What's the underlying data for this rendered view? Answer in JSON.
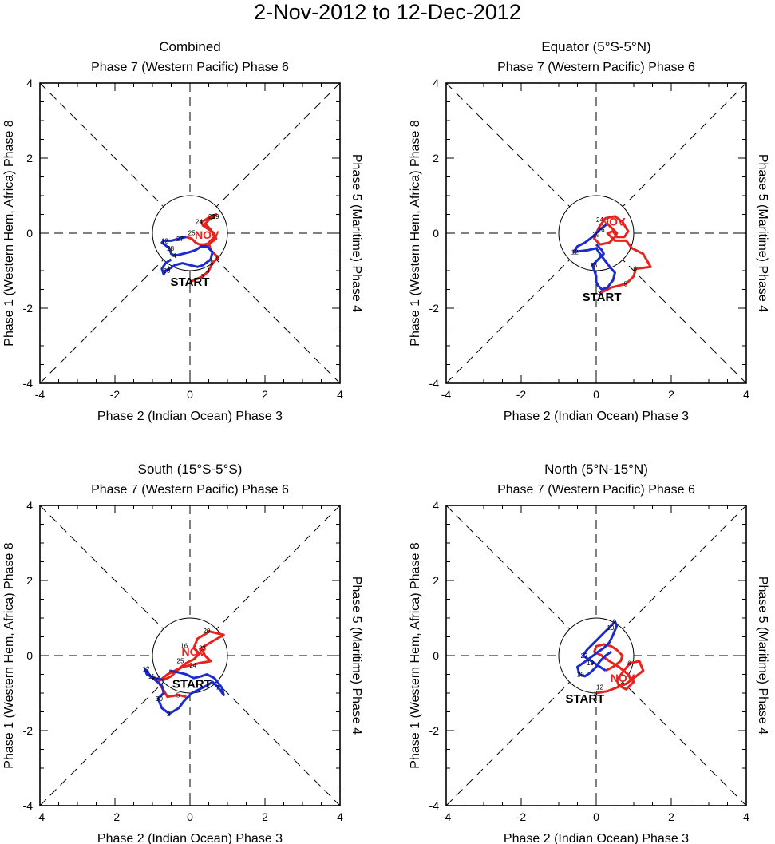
{
  "main_title": "2-Nov-2012 to 12-Dec-2012",
  "colors": {
    "november": "#e8231e",
    "december": "#1b2ccc",
    "axis": "#000000"
  },
  "labels": {
    "top_axis": "Phase 7 (Western Pacific) Phase 6",
    "bottom_axis": "Phase 2 (Indian Ocean) Phase 3",
    "left_axis": "Phase 1 (Western Hem, Africa) Phase 8",
    "right_axis": "Phase 5 (Maritime) Phase 4",
    "start": "START",
    "month_marker": "NOV"
  },
  "chart_data": [
    {
      "type": "line",
      "title": "Combined",
      "xlim": [
        -4,
        4
      ],
      "ylim": [
        -4,
        4
      ],
      "xticks": [
        "-4",
        "-2",
        "0",
        "2",
        "4"
      ],
      "yticks": [
        "-4",
        "-2",
        "0",
        "2",
        "4"
      ],
      "start": [
        0.0,
        -1.3
      ],
      "nov_label": [
        0.45,
        -0.15
      ],
      "series": [
        {
          "name": "November",
          "x": [
            0.0,
            0.35,
            0.5,
            0.6,
            0.75,
            0.55,
            0.5,
            0.65,
            0.55,
            0.4,
            0.5,
            0.65,
            0.7,
            0.55,
            0.4,
            0.3,
            0.35,
            0.5,
            0.65,
            0.7,
            0.55,
            0.4,
            0.25,
            0.15,
            0.05,
            -0.1
          ],
          "y": [
            -1.3,
            -1.15,
            -1.0,
            -0.8,
            -0.65,
            -0.45,
            -0.25,
            -0.1,
            0.1,
            0.25,
            0.35,
            0.45,
            0.5,
            0.45,
            0.35,
            0.3,
            0.2,
            0.1,
            0.0,
            -0.15,
            -0.25,
            -0.3,
            -0.3,
            -0.25,
            -0.15,
            -0.1
          ],
          "point_labels": [
            "2",
            "3",
            "4",
            "5",
            "6",
            "",
            "",
            "",
            "",
            "",
            "",
            "19",
            "",
            "20",
            "",
            "",
            "",
            "",
            "",
            "",
            "",
            "",
            "",
            "",
            "",
            ""
          ]
        },
        {
          "name": "December",
          "x": [
            -0.1,
            -0.3,
            -0.5,
            -0.7,
            -0.75,
            -0.55,
            -0.5,
            -0.4,
            -0.2,
            0.0,
            0.15,
            0.3,
            0.45,
            0.6,
            0.55,
            0.35,
            0.2,
            0.0,
            -0.2,
            -0.4,
            -0.55,
            -0.65,
            -0.7,
            -0.75,
            -0.65,
            -0.5
          ],
          "y": [
            -0.1,
            -0.15,
            -0.2,
            -0.2,
            -0.25,
            -0.4,
            -0.55,
            -0.6,
            -0.55,
            -0.5,
            -0.45,
            -0.35,
            -0.35,
            -0.5,
            -0.7,
            -0.85,
            -0.9,
            -0.85,
            -0.8,
            -0.85,
            -0.95,
            -1.0,
            -1.1,
            -0.95,
            -0.8,
            -0.7
          ],
          "point_labels": [
            "",
            "27",
            "",
            "12",
            "",
            "28",
            "",
            "4",
            "",
            "",
            "",
            "",
            "",
            "",
            "",
            "",
            "",
            "",
            "",
            "",
            "1",
            "30",
            "",
            "",
            "",
            ""
          ]
        }
      ],
      "extra_labels": [
        {
          "text": "24",
          "x": 0.15,
          "y": 0.25
        },
        {
          "text": "25",
          "x": -0.05,
          "y": -0.05
        }
      ]
    },
    {
      "type": "line",
      "title": "Equator (5°S-5°N)",
      "xlim": [
        -4,
        4
      ],
      "ylim": [
        -4,
        4
      ],
      "xticks": [
        "-4",
        "-2",
        "0",
        "2",
        "4"
      ],
      "yticks": [
        "-4",
        "-2",
        "0",
        "2",
        "4"
      ],
      "start": [
        0.15,
        -1.7
      ],
      "nov_label": [
        0.45,
        0.2
      ],
      "series": [
        {
          "name": "November",
          "x": [
            0.1,
            0.4,
            0.8,
            1.0,
            1.05,
            1.45,
            1.25,
            0.95,
            0.8,
            0.5,
            0.3,
            0.45,
            0.55,
            0.75,
            0.85,
            0.7,
            0.5,
            0.25,
            0.1,
            0.0,
            -0.05,
            0.1,
            0.35,
            0.5,
            0.55,
            0.3
          ],
          "y": [
            -1.6,
            -1.45,
            -1.35,
            -1.15,
            -0.95,
            -0.9,
            -0.55,
            -0.4,
            -0.2,
            -0.2,
            0.0,
            0.05,
            -0.1,
            -0.1,
            0.05,
            0.3,
            0.45,
            0.4,
            0.2,
            0.0,
            -0.15,
            -0.3,
            -0.25,
            -0.1,
            0.0,
            0.25
          ],
          "point_labels": [
            "3",
            "",
            "5",
            "",
            "6",
            "",
            "",
            "",
            "",
            "",
            "",
            "",
            "",
            "",
            "",
            "",
            "",
            "",
            "",
            "",
            "",
            "",
            "",
            "",
            "",
            ""
          ]
        },
        {
          "name": "December",
          "x": [
            0.3,
            0.1,
            -0.1,
            -0.3,
            -0.5,
            -0.6,
            -0.2,
            0.0,
            0.1,
            0.25,
            0.4,
            0.5,
            0.45,
            0.3,
            0.15,
            0.05,
            0.0,
            0.0,
            -0.05,
            -0.1,
            0.0,
            0.1,
            0.2,
            0.15,
            0.05,
            0.0
          ],
          "y": [
            0.25,
            0.1,
            -0.1,
            -0.25,
            -0.35,
            -0.5,
            -0.45,
            -0.4,
            -0.55,
            -0.75,
            -0.95,
            -1.05,
            -1.25,
            -1.45,
            -1.5,
            -1.4,
            -1.3,
            -1.15,
            -1.0,
            -0.85,
            -0.75,
            -0.65,
            -0.55,
            -0.45,
            -0.35,
            -0.3
          ],
          "point_labels": [
            "",
            "26",
            "",
            "",
            "",
            "12",
            "",
            "",
            "",
            "",
            "",
            "",
            "",
            "",
            "",
            "",
            "",
            "",
            "",
            "28",
            "",
            "",
            "",
            "",
            "",
            ""
          ]
        }
      ],
      "extra_labels": [
        {
          "text": "24",
          "x": 0.0,
          "y": 0.3
        },
        {
          "text": "29",
          "x": -0.1,
          "y": -0.1
        }
      ]
    },
    {
      "type": "line",
      "title": "South (15°S-5°S)",
      "xlim": [
        -4,
        4
      ],
      "ylim": [
        -4,
        4
      ],
      "xticks": [
        "-4",
        "-2",
        "0",
        "2",
        "4"
      ],
      "yticks": [
        "-4",
        "-2",
        "0",
        "2",
        "4"
      ],
      "start": [
        0.05,
        -0.75
      ],
      "nov_label": [
        0.1,
        0.0
      ],
      "series": [
        {
          "name": "November",
          "x": [
            -0.1,
            -0.3,
            -0.6,
            -0.75,
            -0.85,
            -0.6,
            -0.3,
            -0.1,
            0.1,
            0.25,
            0.1,
            0.2,
            0.45,
            0.5,
            0.7,
            0.9,
            0.55,
            0.3,
            0.4,
            0.55,
            0.25,
            0.05,
            -0.2,
            -0.35,
            -0.5,
            -0.7
          ],
          "y": [
            -1.1,
            -1.05,
            -1.1,
            -0.85,
            -0.7,
            -0.5,
            -0.35,
            -0.2,
            -0.1,
            0.05,
            0.2,
            0.45,
            0.6,
            0.65,
            0.6,
            0.55,
            0.35,
            0.2,
            0.0,
            -0.15,
            -0.2,
            -0.25,
            -0.3,
            -0.4,
            -0.55,
            -0.65
          ],
          "point_labels": [
            "",
            "5",
            "",
            "",
            "",
            "",
            "",
            "",
            "",
            "",
            "",
            "",
            "",
            "",
            "",
            "",
            "",
            "23",
            "",
            "",
            "",
            "24",
            "",
            "",
            "",
            ""
          ]
        },
        {
          "name": "December",
          "x": [
            -0.7,
            -0.95,
            -1.15,
            -1.2,
            -1.05,
            -0.75,
            -0.7,
            -0.85,
            -0.75,
            -0.55,
            -0.3,
            -0.15,
            0.05,
            0.25,
            0.45,
            0.6,
            0.75,
            0.9,
            0.85,
            0.65,
            0.45,
            0.3,
            0.1,
            -0.1,
            -0.3,
            -0.55
          ],
          "y": [
            -0.65,
            -0.6,
            -0.5,
            -0.35,
            -0.55,
            -0.8,
            -1.0,
            -1.15,
            -1.4,
            -1.55,
            -1.4,
            -1.2,
            -1.0,
            -0.9,
            -0.8,
            -0.7,
            -0.85,
            -1.05,
            -0.85,
            -0.6,
            -0.5,
            -0.55,
            -0.6,
            -0.5,
            -0.45,
            -0.4
          ],
          "point_labels": [
            "",
            "22",
            "",
            "12",
            "11",
            "",
            "",
            "30",
            "",
            "2",
            "",
            "",
            "",
            "",
            "",
            "",
            "7",
            "",
            "",
            "",
            "",
            "",
            "",
            "",
            "",
            ""
          ]
        }
      ],
      "extra_labels": [
        {
          "text": "20",
          "x": 0.35,
          "y": 0.6
        },
        {
          "text": "16",
          "x": -0.25,
          "y": 0.2
        },
        {
          "text": "25",
          "x": -0.35,
          "y": -0.2
        }
      ]
    },
    {
      "type": "line",
      "title": "North (5°N-15°N)",
      "xlim": [
        -4,
        4
      ],
      "ylim": [
        -4,
        4
      ],
      "xticks": [
        "-4",
        "-2",
        "0",
        "2",
        "4"
      ],
      "yticks": [
        "-4",
        "-2",
        "0",
        "2",
        "4"
      ],
      "start": [
        -0.3,
        -1.15
      ],
      "nov_label": [
        0.7,
        -0.7
      ],
      "series": [
        {
          "name": "November",
          "x": [
            0.0,
            0.3,
            0.55,
            0.8,
            1.0,
            1.25,
            1.15,
            0.9,
            0.7,
            0.55,
            0.6,
            0.8,
            1.0,
            0.85,
            0.6,
            0.35,
            0.15,
            -0.05,
            0.0,
            0.2,
            0.4,
            0.55,
            0.7,
            0.65,
            0.45,
            0.25
          ],
          "y": [
            -1.0,
            -0.95,
            -0.85,
            -0.75,
            -0.6,
            -0.4,
            -0.15,
            -0.2,
            -0.45,
            -0.65,
            -0.8,
            -0.9,
            -0.7,
            -0.5,
            -0.3,
            -0.15,
            0.0,
            0.1,
            0.25,
            0.3,
            0.25,
            0.15,
            0.0,
            -0.15,
            -0.3,
            -0.4
          ],
          "point_labels": [
            "3",
            "",
            "",
            "",
            "",
            "",
            "",
            "6",
            "",
            "",
            "",
            "",
            "",
            "",
            "",
            "",
            "",
            "",
            "",
            "",
            "",
            "",
            "",
            "",
            "",
            ""
          ]
        },
        {
          "name": "December",
          "x": [
            0.25,
            0.1,
            -0.05,
            -0.2,
            -0.35,
            -0.25,
            -0.1,
            0.05,
            0.2,
            0.35,
            0.5,
            0.55,
            0.45,
            0.35,
            0.2,
            0.05,
            -0.15,
            -0.35,
            -0.5,
            -0.45,
            -0.3,
            -0.15,
            0.0,
            0.1,
            0.25,
            0.4
          ],
          "y": [
            -0.4,
            -0.3,
            -0.2,
            -0.1,
            0.0,
            0.15,
            0.3,
            0.45,
            0.6,
            0.75,
            0.9,
            0.8,
            0.55,
            0.35,
            0.2,
            0.1,
            -0.05,
            -0.2,
            -0.3,
            -0.5,
            -0.55,
            -0.45,
            -0.3,
            -0.15,
            0.0,
            0.1
          ],
          "point_labels": [
            "",
            "",
            "",
            "",
            "27",
            "",
            "",
            "",
            "",
            "10",
            "9",
            "",
            "",
            "",
            "",
            "",
            "",
            "",
            "",
            "29",
            "",
            "",
            "",
            "",
            "",
            ""
          ]
        }
      ],
      "extra_labels": [
        {
          "text": "12",
          "x": 0.0,
          "y": -0.9
        },
        {
          "text": "19",
          "x": -0.25,
          "y": -0.25
        }
      ]
    }
  ]
}
